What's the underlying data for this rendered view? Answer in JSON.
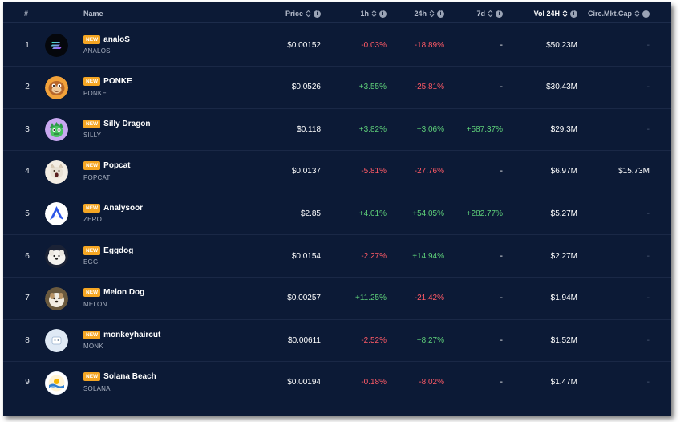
{
  "header": {
    "rank": "#",
    "name": "Name",
    "price": "Price",
    "h1": "1h",
    "h24": "24h",
    "d7": "7d",
    "vol": "Vol 24H",
    "mcap": "Circ.Mkt.Cap"
  },
  "badge_label": "NEW",
  "rows": [
    {
      "rank": "1",
      "name": "analoS",
      "ticker": "ANALOS",
      "price": "$0.00152",
      "h1": "-0.03%",
      "h24": "-18.89%",
      "d7": "-",
      "vol": "$50.23M",
      "mcap": "-",
      "icon": "analos-logo-icon"
    },
    {
      "rank": "2",
      "name": "PONKE",
      "ticker": "PONKE",
      "price": "$0.0526",
      "h1": "+3.55%",
      "h24": "-25.81%",
      "d7": "-",
      "vol": "$30.43M",
      "mcap": "-",
      "icon": "ponke-logo-icon"
    },
    {
      "rank": "3",
      "name": "Silly Dragon",
      "ticker": "SILLY",
      "price": "$0.118",
      "h1": "+3.82%",
      "h24": "+3.06%",
      "d7": "+587.37%",
      "vol": "$29.3M",
      "mcap": "-",
      "icon": "silly-dragon-logo-icon"
    },
    {
      "rank": "4",
      "name": "Popcat",
      "ticker": "POPCAT",
      "price": "$0.0137",
      "h1": "-5.81%",
      "h24": "-27.76%",
      "d7": "-",
      "vol": "$6.97M",
      "mcap": "$15.73M",
      "icon": "popcat-logo-icon"
    },
    {
      "rank": "5",
      "name": "Analysoor",
      "ticker": "ZERO",
      "price": "$2.85",
      "h1": "+4.01%",
      "h24": "+54.05%",
      "d7": "+282.77%",
      "vol": "$5.27M",
      "mcap": "-",
      "icon": "analysoor-logo-icon"
    },
    {
      "rank": "6",
      "name": "Eggdog",
      "ticker": "EGG",
      "price": "$0.0154",
      "h1": "-2.27%",
      "h24": "+14.94%",
      "d7": "-",
      "vol": "$2.27M",
      "mcap": "-",
      "icon": "eggdog-logo-icon"
    },
    {
      "rank": "7",
      "name": "Melon Dog",
      "ticker": "MELON",
      "price": "$0.00257",
      "h1": "+11.25%",
      "h24": "-21.42%",
      "d7": "-",
      "vol": "$1.94M",
      "mcap": "-",
      "icon": "melon-dog-logo-icon"
    },
    {
      "rank": "8",
      "name": "monkeyhaircut",
      "ticker": "MONK",
      "price": "$0.00611",
      "h1": "-2.52%",
      "h24": "+8.27%",
      "d7": "-",
      "vol": "$1.52M",
      "mcap": "-",
      "icon": "monkeyhaircut-logo-icon"
    },
    {
      "rank": "9",
      "name": "Solana Beach",
      "ticker": "SOLANA",
      "price": "$0.00194",
      "h1": "-0.18%",
      "h24": "-8.02%",
      "d7": "-",
      "vol": "$1.47M",
      "mcap": "-",
      "icon": "solana-beach-logo-icon"
    }
  ],
  "colors": {
    "background": "#0c1a36",
    "positive": "#5fd17a",
    "negative": "#ff5a66",
    "badge": "#f5a623"
  }
}
